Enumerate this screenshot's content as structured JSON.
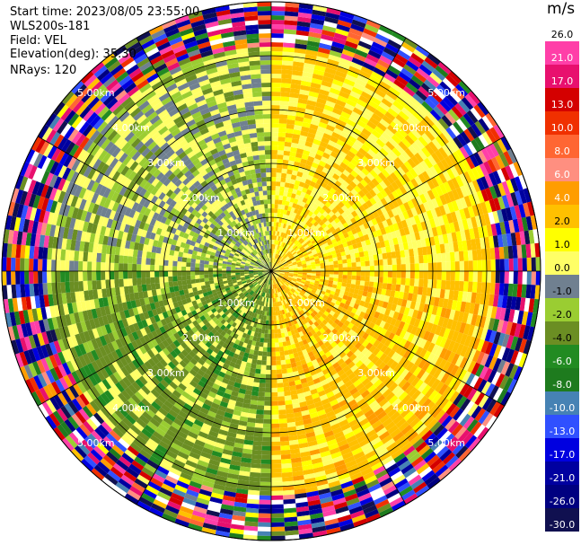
{
  "header": {
    "start_time": "Start time: 2023/08/05 23:55:00",
    "instrument": "WLS200s-181",
    "field": "Field: VEL",
    "elevation": "Elevation(deg): 35.30",
    "nrays": "NRays: 120"
  },
  "colorbar": {
    "unit": "m/s",
    "labels": [
      "26.0",
      "21.0",
      "17.0",
      "13.0",
      "10.0",
      "8.0",
      "6.0",
      "4.0",
      "2.0",
      "1.0",
      "0.0",
      "-1.0",
      "-2.0",
      "-4.0",
      "-6.0",
      "-8.0",
      "-10.0",
      "-13.0",
      "-17.0",
      "-21.0",
      "-26.0",
      "-30.0"
    ],
    "colors": [
      "#ffffff",
      "#ff3fa8",
      "#e8106e",
      "#d40000",
      "#f03000",
      "#ff6633",
      "#ff8f80",
      "#ff9d00",
      "#ffc000",
      "#ffff00",
      "#ffff66",
      "#708090",
      "#9acd32",
      "#6b8e23",
      "#228b22",
      "#1e7b1e",
      "#4682b4",
      "#3050ff",
      "#0000e0",
      "#0000a0",
      "#000080",
      "#101050"
    ]
  },
  "chart_data": {
    "type": "heatmap",
    "subtype": "polar PPI scan",
    "field": "VEL",
    "unit": "m/s",
    "vmin": -30.0,
    "vmax": 26.0,
    "nrays": 120,
    "range_rings_km": [
      1.0,
      2.0,
      3.0,
      4.0,
      5.0
    ],
    "range_ring_labels": [
      "1.00km",
      "2.00km",
      "3.00km",
      "4.00km",
      "5.00km"
    ],
    "max_range_km": 5.0,
    "spokes_deg": [
      0,
      30,
      60,
      90,
      120,
      150,
      180,
      210,
      240,
      270,
      300,
      330
    ],
    "sectors": [
      {
        "azimuth_start_deg": 0,
        "azimuth_end_deg": 90,
        "dominant_velocity": 2.0
      },
      {
        "azimuth_start_deg": 90,
        "azimuth_end_deg": 180,
        "dominant_velocity": 3.0
      },
      {
        "azimuth_start_deg": 180,
        "azimuth_end_deg": 270,
        "dominant_velocity": -3.0
      },
      {
        "azimuth_start_deg": 270,
        "azimuth_end_deg": 360,
        "dominant_velocity": -1.0
      }
    ]
  }
}
